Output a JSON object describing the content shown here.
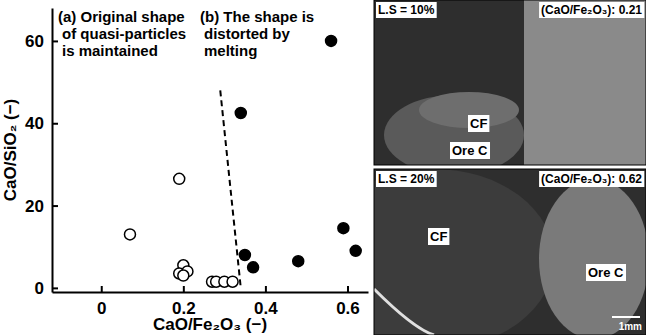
{
  "chart_data": {
    "type": "scatter",
    "x_label": "CaO/Fe₂O₃ (−)",
    "y_label": "CaO/SiO₂ (−)",
    "xlim": [
      -0.12,
      0.65
    ],
    "ylim": [
      -1,
      68
    ],
    "xticks": [
      0,
      0.2,
      0.4,
      0.6
    ],
    "yticks": [
      0,
      20,
      40,
      60
    ],
    "grid": false,
    "annotations": [
      [
        "(a) Original shape",
        "of quasi-particles",
        "is maintained"
      ],
      [
        "(b) The shape is",
        "distorted by",
        "melting"
      ]
    ],
    "series": [
      {
        "type": "scatter",
        "marker": "open-circle",
        "color": "#000000",
        "x": [
          0.07,
          0.19,
          0.2,
          0.19,
          0.21,
          0.2,
          0.27,
          0.28,
          0.3,
          0.32
        ],
        "values": [
          13,
          26.5,
          5.5,
          3.5,
          4,
          3,
          1.5,
          1.5,
          1.5,
          1.5
        ]
      },
      {
        "type": "scatter",
        "marker": "filled-circle",
        "color": "#000000",
        "x": [
          0.34,
          0.35,
          0.37,
          0.48,
          0.56,
          0.59,
          0.62
        ],
        "values": [
          42.5,
          8,
          5,
          6.5,
          60,
          14.5,
          9
        ]
      },
      {
        "type": "line",
        "line_style": "dashed",
        "color": "#000000",
        "x": [
          0.29,
          0.34
        ],
        "values": [
          48,
          0
        ]
      }
    ]
  },
  "micrographs": [
    {
      "condition": "L.S = 10%",
      "ratio": "(CaO/Fe₂O₃): 0.21",
      "labels": [
        "CF",
        "Ore C"
      ]
    },
    {
      "condition": "L.S = 20%",
      "ratio": "(CaO/Fe₂O₃): 0.62",
      "labels": [
        "CF",
        "Ore C"
      ],
      "scale_bar": "1mm"
    }
  ]
}
